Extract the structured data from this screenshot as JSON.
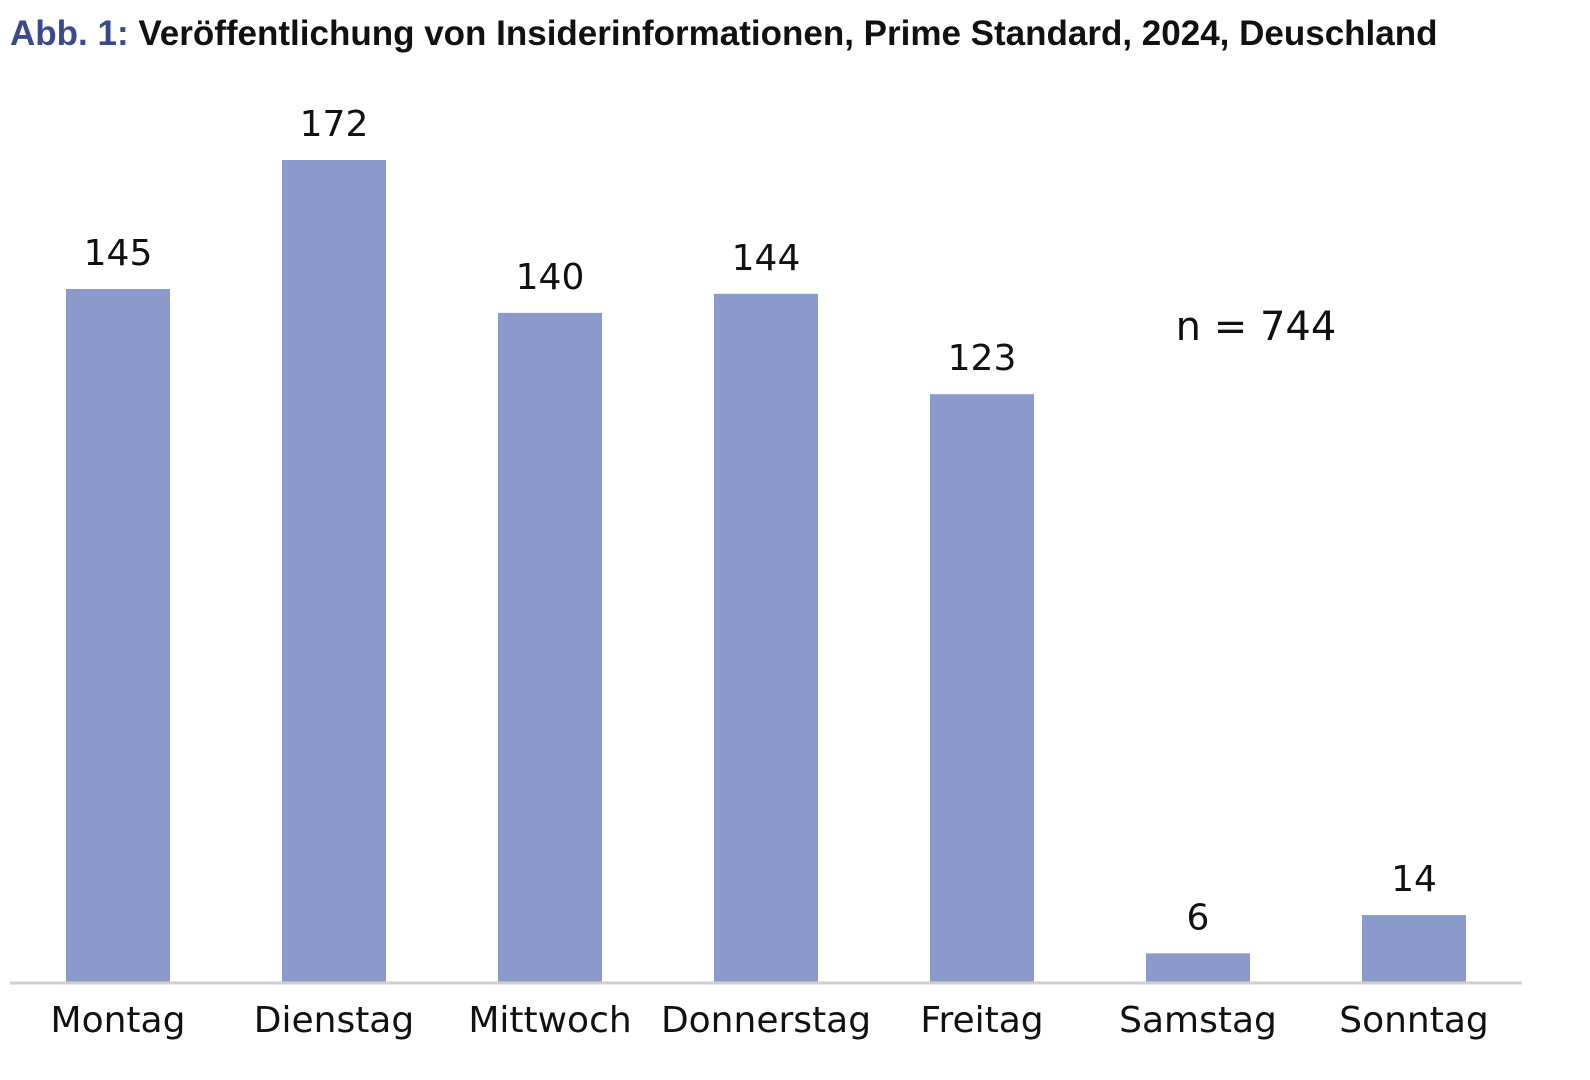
{
  "figure": {
    "label": "Abb. 1:",
    "title": "Veröffentlichung von Insiderinformationen, Prime Standard, 2024, Deuschland"
  },
  "chart_data": {
    "type": "bar",
    "title": "Veröffentlichung von Insiderinformationen, Prime Standard, 2024, Deuschland",
    "categories": [
      "Montag",
      "Dienstag",
      "Mittwoch",
      "Donnerstag",
      "Freitag",
      "Samstag",
      "Sonntag"
    ],
    "values": [
      145,
      172,
      140,
      144,
      123,
      6,
      14
    ],
    "annotation": "n = 744",
    "xlabel": "",
    "ylabel": "",
    "ylim": [
      0,
      172
    ],
    "grid": false,
    "legend": "none",
    "bar_color": "#8a9bcb",
    "axis_color": "#cfcfcf",
    "label_color": "#111111"
  }
}
